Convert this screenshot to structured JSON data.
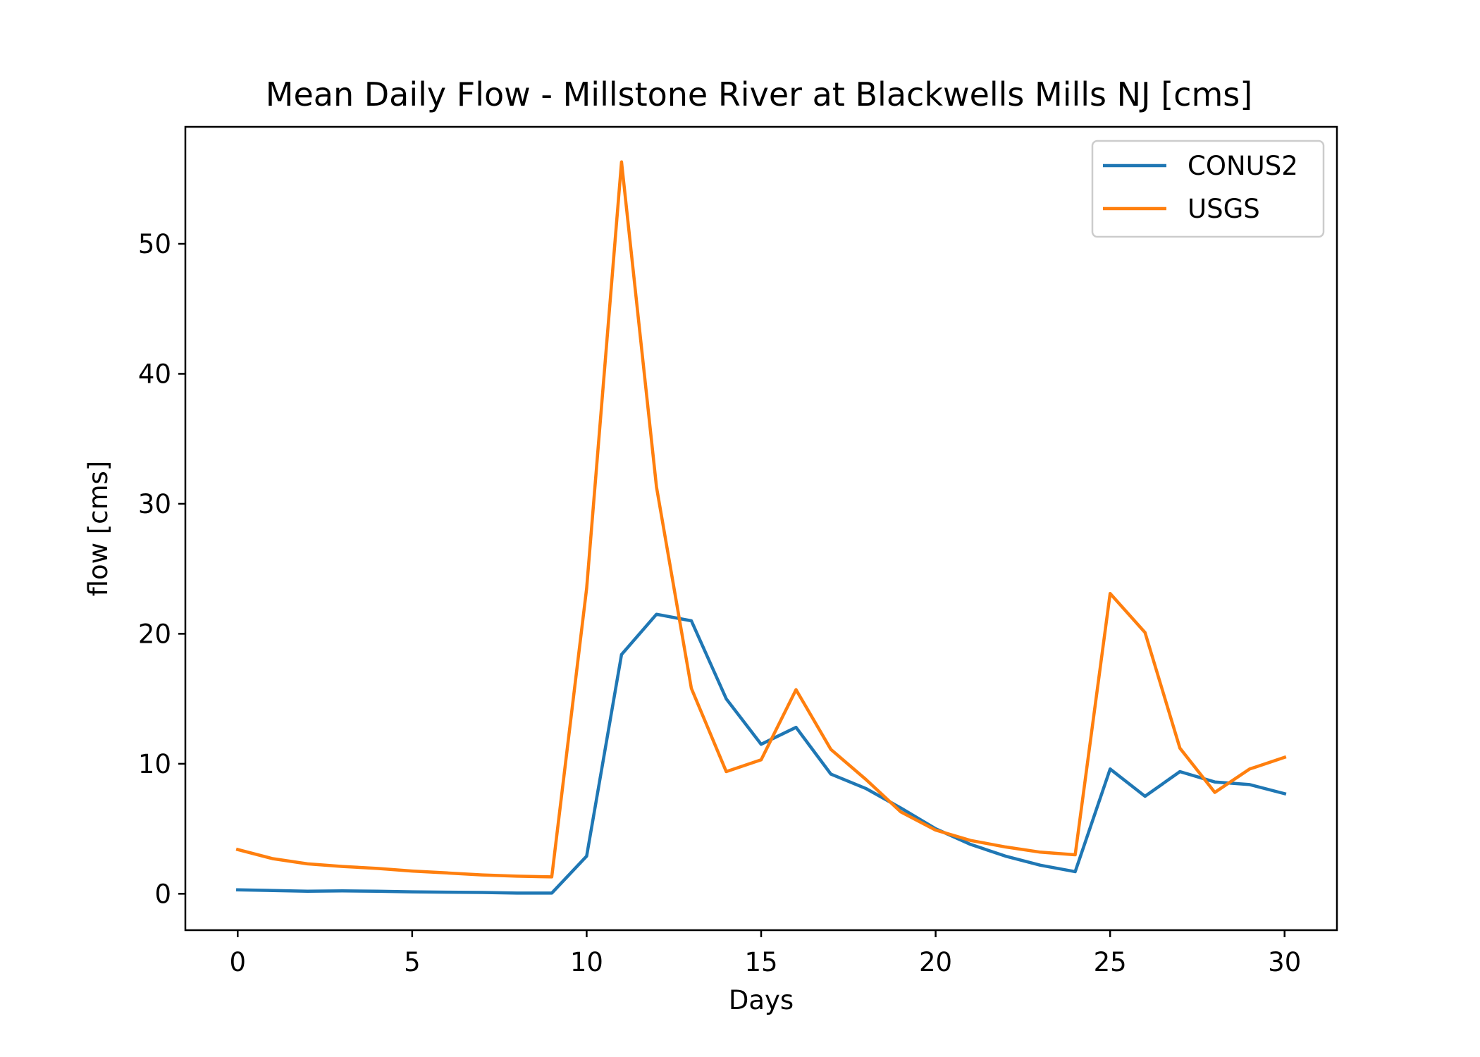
{
  "chart_data": {
    "type": "line",
    "title": "Mean Daily Flow - Millstone River at Blackwells Mills NJ [cms]",
    "xlabel": "Days",
    "ylabel": "flow [cms]",
    "xlim": [
      -1.5,
      31.5
    ],
    "ylim": [
      -2.8,
      59.0
    ],
    "xticks": [
      0,
      5,
      10,
      15,
      20,
      25,
      30
    ],
    "yticks": [
      0,
      10,
      20,
      30,
      40,
      50
    ],
    "grid": false,
    "legend": "top-right",
    "x": [
      0,
      1,
      2,
      3,
      4,
      5,
      6,
      7,
      8,
      9,
      10,
      11,
      12,
      13,
      14,
      15,
      16,
      17,
      18,
      19,
      20,
      21,
      22,
      23,
      24,
      25,
      26,
      27,
      28,
      29,
      30
    ],
    "series": [
      {
        "name": "CONUS2",
        "color": "#1f77b4",
        "values": [
          0.3,
          0.25,
          0.2,
          0.22,
          0.2,
          0.15,
          0.12,
          0.1,
          0.05,
          0.05,
          2.9,
          18.4,
          21.5,
          21.0,
          15.0,
          11.5,
          12.8,
          9.2,
          8.1,
          6.6,
          5.0,
          3.8,
          2.9,
          2.2,
          1.7,
          9.6,
          7.5,
          9.4,
          8.6,
          8.4,
          7.7
        ]
      },
      {
        "name": "USGS",
        "color": "#ff7f0e",
        "values": [
          3.4,
          2.7,
          2.3,
          2.1,
          1.95,
          1.75,
          1.6,
          1.45,
          1.35,
          1.3,
          23.5,
          56.3,
          31.3,
          15.8,
          9.4,
          10.3,
          15.7,
          11.1,
          8.8,
          6.3,
          4.9,
          4.1,
          3.6,
          3.2,
          3.0,
          23.1,
          20.1,
          11.2,
          7.8,
          9.6,
          10.5
        ]
      }
    ]
  }
}
